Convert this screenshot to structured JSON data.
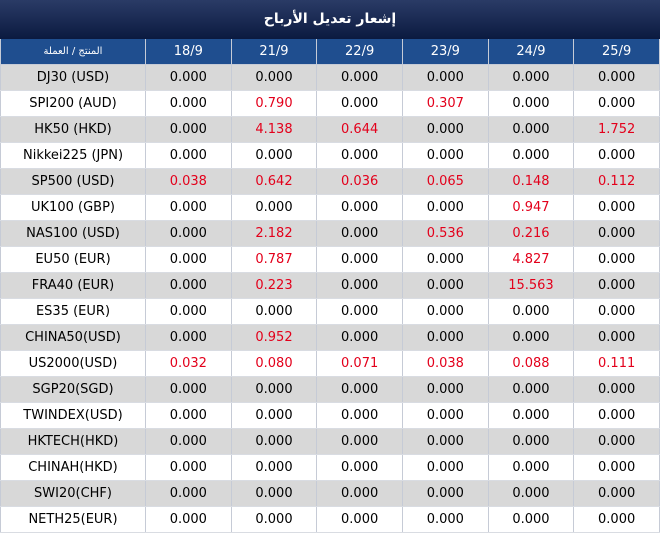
{
  "title": "إشعار تعديل الأرباح",
  "header": {
    "product_label": "المنتج / العملة",
    "dates": [
      "18/9",
      "21/9",
      "22/9",
      "23/9",
      "24/9",
      "25/9"
    ]
  },
  "colors": {
    "title_bg": "#0b1a40",
    "header_bg": "#1f4e8f",
    "highlight": "#e3001b",
    "shade": "#d8d8d8"
  },
  "rows": [
    {
      "product": "DJ30 (USD)",
      "values": [
        "0.000",
        "0.000",
        "0.000",
        "0.000",
        "0.000",
        "0.000"
      ]
    },
    {
      "product": "SPI200 (AUD)",
      "values": [
        "0.000",
        "0.790",
        "0.000",
        "0.307",
        "0.000",
        "0.000"
      ]
    },
    {
      "product": "HK50 (HKD)",
      "values": [
        "0.000",
        "4.138",
        "0.644",
        "0.000",
        "0.000",
        "1.752"
      ]
    },
    {
      "product": "Nikkei225 (JPN)",
      "values": [
        "0.000",
        "0.000",
        "0.000",
        "0.000",
        "0.000",
        "0.000"
      ]
    },
    {
      "product": "SP500 (USD)",
      "values": [
        "0.038",
        "0.642",
        "0.036",
        "0.065",
        "0.148",
        "0.112"
      ]
    },
    {
      "product": "UK100 (GBP)",
      "values": [
        "0.000",
        "0.000",
        "0.000",
        "0.000",
        "0.947",
        "0.000"
      ]
    },
    {
      "product": "NAS100 (USD)",
      "values": [
        "0.000",
        "2.182",
        "0.000",
        "0.536",
        "0.216",
        "0.000"
      ]
    },
    {
      "product": "EU50 (EUR)",
      "values": [
        "0.000",
        "0.787",
        "0.000",
        "0.000",
        "4.827",
        "0.000"
      ]
    },
    {
      "product": "FRA40 (EUR)",
      "values": [
        "0.000",
        "0.223",
        "0.000",
        "0.000",
        "15.563",
        "0.000"
      ]
    },
    {
      "product": "ES35 (EUR)",
      "values": [
        "0.000",
        "0.000",
        "0.000",
        "0.000",
        "0.000",
        "0.000"
      ]
    },
    {
      "product": "CHINA50(USD)",
      "values": [
        "0.000",
        "0.952",
        "0.000",
        "0.000",
        "0.000",
        "0.000"
      ]
    },
    {
      "product": "US2000(USD)",
      "values": [
        "0.032",
        "0.080",
        "0.071",
        "0.038",
        "0.088",
        "0.111"
      ]
    },
    {
      "product": "SGP20(SGD)",
      "values": [
        "0.000",
        "0.000",
        "0.000",
        "0.000",
        "0.000",
        "0.000"
      ]
    },
    {
      "product": "TWINDEX(USD)",
      "values": [
        "0.000",
        "0.000",
        "0.000",
        "0.000",
        "0.000",
        "0.000"
      ]
    },
    {
      "product": "HKTECH(HKD)",
      "values": [
        "0.000",
        "0.000",
        "0.000",
        "0.000",
        "0.000",
        "0.000"
      ]
    },
    {
      "product": "CHINAH(HKD)",
      "values": [
        "0.000",
        "0.000",
        "0.000",
        "0.000",
        "0.000",
        "0.000"
      ]
    },
    {
      "product": "SWI20(CHF)",
      "values": [
        "0.000",
        "0.000",
        "0.000",
        "0.000",
        "0.000",
        "0.000"
      ]
    },
    {
      "product": "NETH25(EUR)",
      "values": [
        "0.000",
        "0.000",
        "0.000",
        "0.000",
        "0.000",
        "0.000"
      ]
    }
  ]
}
